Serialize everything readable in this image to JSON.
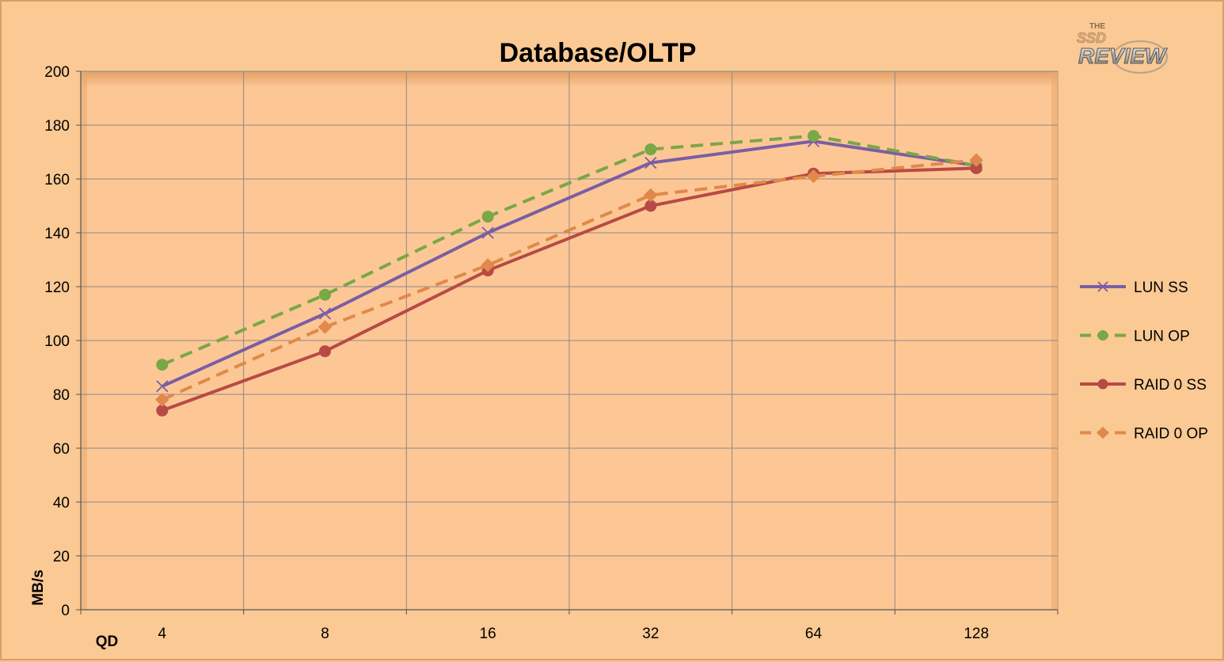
{
  "colors": {
    "background": "#fac994",
    "plot_area": "#fdc795",
    "gridline": "#8a8a8a",
    "lun_ss": "#7a5ea3",
    "lun_op": "#79a845",
    "raid0_ss": "#b84a45",
    "raid0_op": "#e0894a"
  },
  "logo": {
    "text_small": "THE",
    "text_mid": "SSD",
    "text_main": "REVIEW"
  },
  "chart_data": {
    "type": "line",
    "title": "Database/OLTP",
    "xlabel": "QD",
    "ylabel": "MB/s",
    "categories": [
      "4",
      "8",
      "16",
      "32",
      "64",
      "128"
    ],
    "ylim": [
      0,
      200
    ],
    "yticks": [
      0,
      20,
      40,
      60,
      80,
      100,
      120,
      140,
      160,
      180,
      200
    ],
    "grid": true,
    "legend_position": "right",
    "series": [
      {
        "name": "LUN SS",
        "values": [
          83,
          110,
          140,
          166,
          174,
          165
        ],
        "color": "#7a5ea3",
        "dash": "solid",
        "marker": "x"
      },
      {
        "name": "LUN OP",
        "values": [
          91,
          117,
          146,
          171,
          176,
          165
        ],
        "color": "#79a845",
        "dash": "dashed",
        "marker": "circle"
      },
      {
        "name": "RAID 0 SS",
        "values": [
          74,
          96,
          126,
          150,
          162,
          164
        ],
        "color": "#b84a45",
        "dash": "solid",
        "marker": "circle"
      },
      {
        "name": "RAID 0 OP",
        "values": [
          78,
          105,
          128,
          154,
          161,
          167
        ],
        "color": "#e0894a",
        "dash": "dashed",
        "marker": "diamond"
      }
    ]
  }
}
